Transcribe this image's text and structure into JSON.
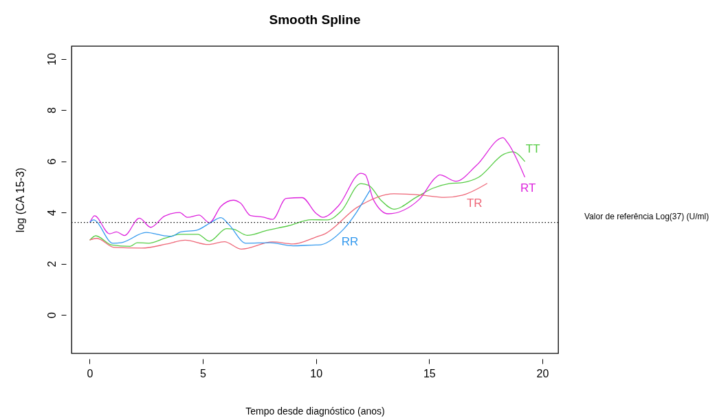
{
  "chart_data": {
    "type": "line",
    "title": "Smooth Spline",
    "xlabel": "Tempo desde diagnóstico (anos)",
    "ylabel": "log (CA 15-3)",
    "xlim": [
      -0.8,
      20.7
    ],
    "ylim": [
      -1.5,
      10.5
    ],
    "xticks": [
      0,
      5,
      10,
      15,
      20
    ],
    "yticks": [
      0,
      2,
      4,
      6,
      8,
      10
    ],
    "grid": false,
    "marker": "none",
    "line_style": "solid",
    "ref_lines": [
      {
        "axis": "y",
        "value": 3.61,
        "label": "Valor de referência Log(37) (U/ml)",
        "color": "#000000",
        "line_style": "dotted"
      }
    ],
    "series": [
      {
        "name": "TT",
        "color": "#55cc44",
        "x": [
          0.02,
          0.27,
          0.98,
          1.79,
          2.1,
          2.6,
          3.31,
          4.02,
          4.78,
          5.29,
          6.05,
          6.35,
          6.96,
          7.87,
          8.78,
          9.8,
          10.51,
          11.12,
          11.98,
          12.33,
          12.89,
          13.44,
          14.46,
          15.17,
          15.88,
          16.48,
          17.19,
          18.31,
          18.69,
          19.22
        ],
        "values": [
          2.93,
          3.09,
          2.73,
          2.68,
          2.82,
          2.8,
          2.99,
          3.15,
          3.15,
          2.88,
          3.37,
          3.35,
          3.11,
          3.31,
          3.48,
          3.72,
          3.71,
          4.06,
          5.13,
          5.06,
          4.46,
          4.13,
          4.61,
          4.95,
          5.13,
          5.17,
          5.38,
          6.28,
          6.37,
          6.0
        ]
      },
      {
        "name": "RT",
        "color": "#dd22dd",
        "x": [
          0.02,
          0.22,
          0.88,
          1.19,
          1.54,
          2.2,
          2.7,
          3.31,
          3.97,
          4.33,
          4.83,
          5.29,
          5.8,
          6.35,
          6.66,
          7.11,
          7.67,
          8.08,
          8.68,
          9.39,
          10.0,
          10.3,
          11.01,
          11.98,
          12.18,
          12.53,
          13.19,
          14.56,
          15.27,
          15.47,
          16.18,
          17.09,
          18.26,
          18.46,
          19.22
        ],
        "values": [
          3.62,
          3.87,
          3.17,
          3.24,
          3.1,
          3.78,
          3.42,
          3.86,
          4.0,
          3.81,
          3.9,
          3.6,
          4.24,
          4.48,
          4.37,
          3.88,
          3.82,
          3.73,
          4.55,
          4.58,
          3.97,
          3.81,
          4.28,
          5.53,
          5.47,
          4.51,
          3.95,
          4.51,
          5.35,
          5.47,
          5.22,
          5.84,
          6.92,
          6.73,
          5.39
        ]
      },
      {
        "name": "TR",
        "color": "#ee6677",
        "x": [
          0.02,
          0.32,
          1.08,
          2.3,
          3.41,
          4.22,
          5.24,
          5.95,
          6.71,
          8.08,
          8.99,
          10.0,
          10.4,
          11.82,
          13.44,
          14.66,
          15.67,
          16.48,
          17.55
        ],
        "values": [
          2.93,
          2.99,
          2.64,
          2.61,
          2.77,
          2.92,
          2.75,
          2.86,
          2.57,
          2.85,
          2.77,
          3.04,
          3.17,
          4.2,
          4.73,
          4.68,
          4.59,
          4.68,
          5.13
        ]
      },
      {
        "name": "RR",
        "color": "#3399ee",
        "x": [
          0.02,
          0.17,
          1.03,
          1.39,
          2.5,
          3.31,
          3.62,
          4.02,
          4.73,
          5.34,
          5.8,
          6.15,
          6.91,
          7.97,
          8.99,
          10.0,
          10.1,
          11.22,
          12.38
        ],
        "values": [
          3.63,
          3.71,
          2.8,
          2.82,
          3.22,
          3.09,
          3.07,
          3.24,
          3.31,
          3.6,
          3.8,
          3.53,
          2.8,
          2.82,
          2.7,
          2.73,
          2.73,
          3.35,
          4.86
        ]
      }
    ]
  }
}
